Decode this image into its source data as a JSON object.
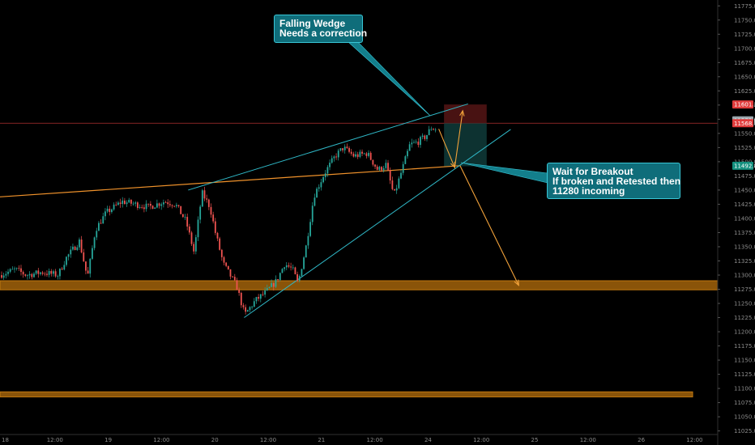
{
  "chart_data": {
    "type": "candlestick",
    "x_ticks": [
      "18",
      "12:00",
      "19",
      "12:00",
      "20",
      "12:00",
      "21",
      "12:00",
      "24",
      "12:00",
      "25",
      "12:00",
      "26",
      "12:00"
    ],
    "y_ticks": [
      11775.0,
      11750.0,
      11725.0,
      11700.0,
      11675.0,
      11650.0,
      11625.0,
      11600.0,
      11575.0,
      11550.0,
      11525.0,
      11500.0,
      11475.0,
      11450.0,
      11425.0,
      11400.0,
      11375.0,
      11350.0,
      11325.0,
      11300.0,
      11275.0,
      11250.0,
      11225.0,
      11200.0,
      11175.0,
      11150.0,
      11125.0,
      11100.0,
      11075.0,
      11050.0,
      11025.0
    ],
    "ylim": [
      11010,
      11790
    ],
    "price_labels": [
      {
        "value": "11601.1",
        "color": "#e03b3b"
      },
      {
        "value": "11573.0",
        "color": "#9ba6ad"
      },
      {
        "value": "11568.0",
        "color": "#e03b3b"
      },
      {
        "value": "11492.8",
        "color": "#138f7e"
      }
    ],
    "support_zones": [
      {
        "from": 11274,
        "to": 11290
      },
      {
        "from": 11085,
        "to": 11094
      }
    ],
    "horizontal_line": 11568,
    "price_path": [
      {
        "x": 0,
        "y": 11300
      },
      {
        "x": 0.3,
        "y": 11310
      },
      {
        "x": 0.5,
        "y": 11300
      },
      {
        "x": 0.8,
        "y": 11305
      },
      {
        "x": 1.1,
        "y": 11300
      },
      {
        "x": 1.25,
        "y": 11330
      },
      {
        "x": 1.5,
        "y": 11360
      },
      {
        "x": 1.65,
        "y": 11295
      },
      {
        "x": 1.8,
        "y": 11380
      },
      {
        "x": 2.0,
        "y": 11410
      },
      {
        "x": 2.3,
        "y": 11430
      },
      {
        "x": 2.8,
        "y": 11420
      },
      {
        "x": 3.1,
        "y": 11430
      },
      {
        "x": 3.3,
        "y": 11425
      },
      {
        "x": 3.5,
        "y": 11395
      },
      {
        "x": 3.65,
        "y": 11340
      },
      {
        "x": 3.8,
        "y": 11445
      },
      {
        "x": 3.95,
        "y": 11420
      },
      {
        "x": 4.05,
        "y": 11375
      },
      {
        "x": 4.2,
        "y": 11320
      },
      {
        "x": 4.45,
        "y": 11280
      },
      {
        "x": 4.6,
        "y": 11230
      },
      {
        "x": 4.8,
        "y": 11255
      },
      {
        "x": 5.0,
        "y": 11270
      },
      {
        "x": 5.2,
        "y": 11290
      },
      {
        "x": 5.35,
        "y": 11320
      },
      {
        "x": 5.5,
        "y": 11310
      },
      {
        "x": 5.6,
        "y": 11285
      },
      {
        "x": 5.75,
        "y": 11350
      },
      {
        "x": 5.9,
        "y": 11440
      },
      {
        "x": 6.1,
        "y": 11480
      },
      {
        "x": 6.3,
        "y": 11510
      },
      {
        "x": 6.45,
        "y": 11525
      },
      {
        "x": 6.65,
        "y": 11510
      },
      {
        "x": 6.9,
        "y": 11515
      },
      {
        "x": 7.1,
        "y": 11485
      },
      {
        "x": 7.25,
        "y": 11495
      },
      {
        "x": 7.4,
        "y": 11440
      },
      {
        "x": 7.55,
        "y": 11485
      },
      {
        "x": 7.7,
        "y": 11530
      },
      {
        "x": 7.85,
        "y": 11535
      },
      {
        "x": 8.0,
        "y": 11545
      },
      {
        "x": 8.1,
        "y": 11560
      },
      {
        "x": 8.15,
        "y": 11558
      }
    ],
    "projection_path": [
      {
        "x": 8.2,
        "y": 11558
      },
      {
        "x": 8.5,
        "y": 11490
      },
      {
        "x": 8.65,
        "y": 11590
      }
    ],
    "breakdown_path": [
      {
        "x": 8.6,
        "y": 11493
      },
      {
        "x": 9.7,
        "y": 11282
      }
    ],
    "trendline": [
      {
        "x": -0.5,
        "y": 11435
      },
      {
        "x": 8.6,
        "y": 11493
      }
    ],
    "wedge_upper": [
      {
        "x": 3.5,
        "y": 11450
      },
      {
        "x": 8.75,
        "y": 11602
      }
    ],
    "wedge_lower": [
      {
        "x": 4.55,
        "y": 11225
      },
      {
        "x": 9.55,
        "y": 11557
      }
    ],
    "trade_box": {
      "x_from": 8.3,
      "x_to": 9.1,
      "stop": 11601,
      "entry": 11568,
      "target": 11492
    }
  },
  "callouts": {
    "top": "Falling Wedge\nNeeds a correction",
    "right": "Wait for Breakout\nIf broken and Retested then\n11280 incoming"
  }
}
